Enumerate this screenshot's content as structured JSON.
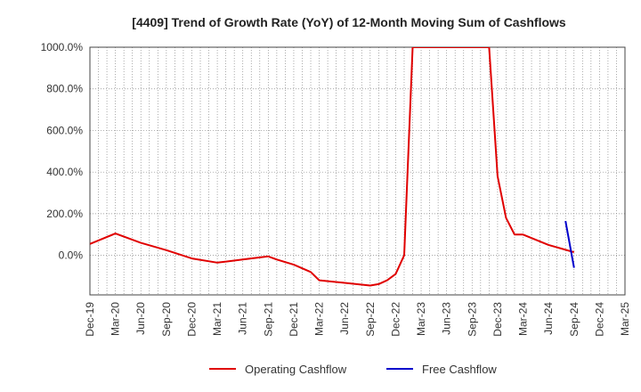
{
  "chart_data": {
    "type": "line",
    "title": "[4409]  Trend of Growth Rate (YoY) of 12-Month Moving Sum of Cashflows",
    "xlabel": "",
    "ylabel": "",
    "x_ticks": [
      "Dec-19",
      "Mar-20",
      "Jun-20",
      "Sep-20",
      "Dec-20",
      "Mar-21",
      "Jun-21",
      "Sep-21",
      "Dec-21",
      "Mar-22",
      "Jun-22",
      "Sep-22",
      "Dec-22",
      "Mar-23",
      "Jun-23",
      "Sep-23",
      "Dec-23",
      "Mar-24",
      "Jun-24",
      "Sep-24",
      "Dec-24",
      "Mar-25"
    ],
    "y_ticks": [
      "1000.0%",
      "800.0%",
      "600.0%",
      "400.0%",
      "200.0%",
      "0.0%"
    ],
    "y_tick_values": [
      1000,
      800,
      600,
      400,
      200,
      0
    ],
    "ylim": [
      -190,
      1000
    ],
    "grid": true,
    "legend_position": "bottom",
    "series": [
      {
        "name": "Operating Cashflow",
        "color": "#e00000",
        "x": [
          "Dec-19",
          "Mar-20",
          "Jun-20",
          "Sep-20",
          "Dec-20",
          "Mar-21",
          "Jun-21",
          "Sep-21",
          "Oct-21",
          "Dec-21",
          "Feb-22",
          "Mar-22",
          "Jun-22",
          "Sep-22",
          "Oct-22",
          "Nov-22",
          "Dec-22",
          "Jan-23",
          "Feb-23",
          "Nov-23",
          "Dec-23",
          "Jan-24",
          "Feb-24",
          "Mar-24",
          "Jun-24",
          "Sep-24"
        ],
        "values": [
          55,
          105,
          60,
          25,
          -15,
          -35,
          -20,
          -5,
          -20,
          -45,
          -80,
          -120,
          -132,
          -145,
          -138,
          -120,
          -90,
          0,
          1000,
          1000,
          380,
          180,
          100,
          100,
          50,
          15
        ]
      },
      {
        "name": "Free Cashflow",
        "color": "#0000cc",
        "x": [
          "Aug-24",
          "Sep-24"
        ],
        "values": [
          165,
          -60
        ]
      }
    ]
  }
}
